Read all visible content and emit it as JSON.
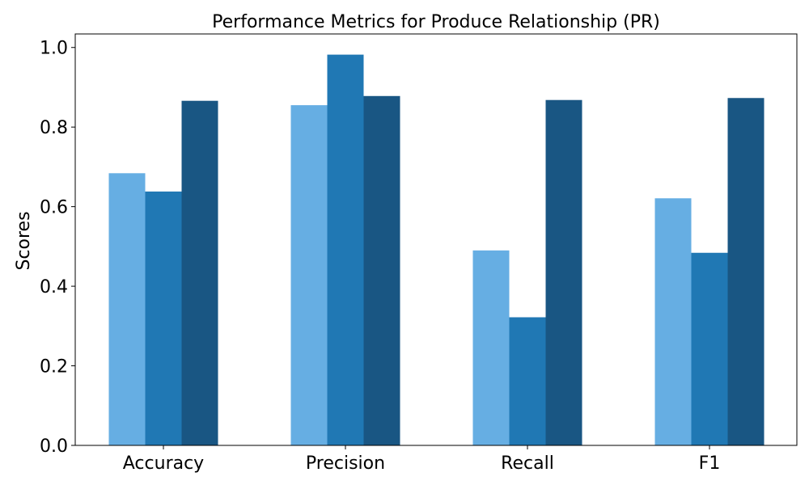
{
  "chart_data": {
    "type": "bar",
    "title": "Performance Metrics for Produce Relationship (PR)",
    "xlabel": "",
    "ylabel": "Scores",
    "categories": [
      "Accuracy",
      "Precision",
      "Recall",
      "F1"
    ],
    "yticks": [
      "0.0",
      "0.2",
      "0.4",
      "0.6",
      "0.8",
      "1.0"
    ],
    "ylim": [
      0,
      1.034
    ],
    "grid": false,
    "legend": "none",
    "series": [
      {
        "values": [
          0.684,
          0.855,
          0.49,
          0.621
        ],
        "color": "#66aee3"
      },
      {
        "values": [
          0.638,
          0.982,
          0.322,
          0.484
        ],
        "color": "#2078b4"
      },
      {
        "values": [
          0.866,
          0.878,
          0.868,
          0.873
        ],
        "color": "#195683"
      }
    ]
  }
}
